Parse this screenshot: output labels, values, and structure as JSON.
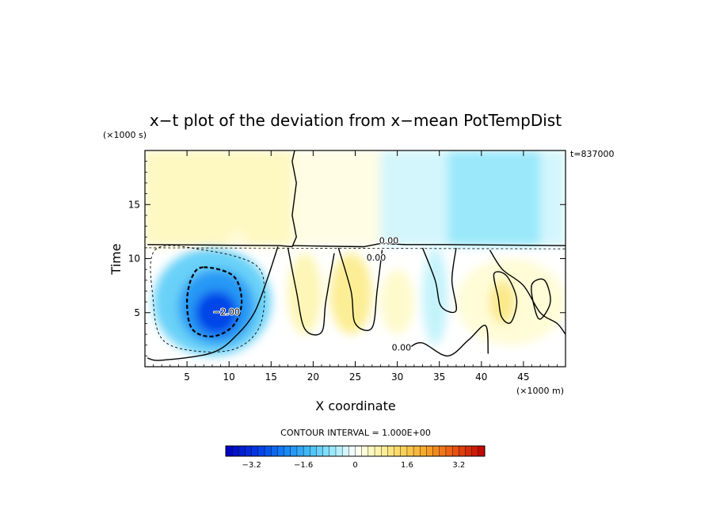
{
  "chart_data": {
    "type": "heatmap",
    "title": "x−t plot of the deviation from x−mean PotTempDist",
    "xlabel": "X coordinate",
    "ylabel": "Time",
    "x_unit": "(×1000 m)",
    "y_unit": "(×1000 s)",
    "time_annotation": "t=837000",
    "contour_note": "CONTOUR INTERVAL = 1.000E+00",
    "xlim": [
      0,
      50
    ],
    "ylim": [
      0,
      20
    ],
    "x_ticks": [
      5,
      10,
      15,
      20,
      25,
      30,
      35,
      40,
      45
    ],
    "y_ticks": [
      5,
      10,
      15
    ],
    "contour_labels": [
      {
        "text": "0.00",
        "x": 29,
        "y": 11.4
      },
      {
        "text": "0.00",
        "x": 27.5,
        "y": 9.8
      },
      {
        "text": "0.00",
        "x": 30.5,
        "y": 1.5
      },
      {
        "text": "−2.00",
        "x": 9.7,
        "y": 4.8
      }
    ],
    "regions": [
      {
        "value": 0.5,
        "x": [
          0,
          17.5
        ],
        "y": [
          11.2,
          20
        ]
      },
      {
        "value": 0.3,
        "x": [
          10,
          12
        ],
        "y": [
          11.2,
          12.5
        ]
      },
      {
        "value": 0.2,
        "x": [
          17.5,
          28
        ],
        "y": [
          11.2,
          20
        ]
      },
      {
        "value": -0.3,
        "x": [
          28,
          36
        ],
        "y": [
          11.2,
          20
        ]
      },
      {
        "value": -0.7,
        "x": [
          36,
          50
        ],
        "y": [
          11.2,
          20
        ]
      },
      {
        "value": -0.3,
        "x": [
          47,
          50
        ],
        "y": [
          11.2,
          20
        ]
      },
      {
        "value": -1.1,
        "x": [
          1,
          15
        ],
        "y": [
          1,
          11
        ]
      },
      {
        "value": -1.9,
        "x": [
          4,
          13
        ],
        "y": [
          2,
          9
        ]
      },
      {
        "value": -2.9,
        "x": [
          6,
          11
        ],
        "y": [
          3,
          7
        ]
      },
      {
        "value": 0.6,
        "x": [
          17,
          21
        ],
        "y": [
          3,
          10.5
        ]
      },
      {
        "value": 0.9,
        "x": [
          22,
          27
        ],
        "y": [
          3,
          10.5
        ]
      },
      {
        "value": 0.4,
        "x": [
          28,
          32
        ],
        "y": [
          3,
          9
        ]
      },
      {
        "value": 0.3,
        "x": [
          37,
          50
        ],
        "y": [
          2,
          10
        ]
      },
      {
        "value": 1.0,
        "x": [
          41,
          44
        ],
        "y": [
          4,
          8
        ]
      },
      {
        "value": -0.4,
        "x": [
          33,
          36
        ],
        "y": [
          2,
          11
        ]
      }
    ],
    "colorbar": {
      "min": -4.0,
      "max": 4.0,
      "step": 0.2,
      "tick_labels": [
        "−3.2",
        "−1.6",
        "0",
        "1.6",
        "3.2"
      ],
      "tick_values": [
        -3.2,
        -1.6,
        0,
        1.6,
        3.2
      ]
    }
  }
}
